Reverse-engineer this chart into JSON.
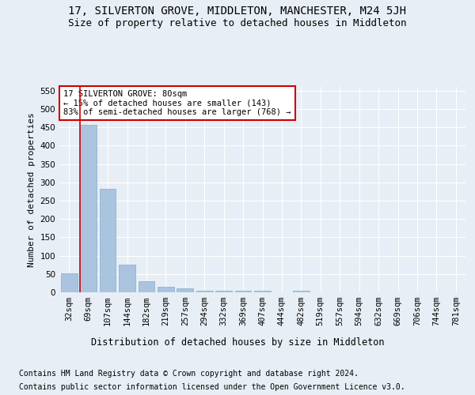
{
  "title": "17, SILVERTON GROVE, MIDDLETON, MANCHESTER, M24 5JH",
  "subtitle": "Size of property relative to detached houses in Middleton",
  "xlabel": "Distribution of detached houses by size in Middleton",
  "ylabel": "Number of detached properties",
  "categories": [
    "32sqm",
    "69sqm",
    "107sqm",
    "144sqm",
    "182sqm",
    "219sqm",
    "257sqm",
    "294sqm",
    "332sqm",
    "369sqm",
    "407sqm",
    "444sqm",
    "482sqm",
    "519sqm",
    "557sqm",
    "594sqm",
    "632sqm",
    "669sqm",
    "706sqm",
    "744sqm",
    "781sqm"
  ],
  "values": [
    52,
    457,
    283,
    76,
    31,
    15,
    10,
    5,
    4,
    4,
    5,
    0,
    5,
    0,
    0,
    0,
    0,
    0,
    0,
    0,
    0
  ],
  "bar_color": "#aac4e0",
  "bar_edge_color": "#7aafd0",
  "vline_x": 1,
  "vline_color": "#cc0000",
  "annotation_text": "17 SILVERTON GROVE: 80sqm\n← 15% of detached houses are smaller (143)\n83% of semi-detached houses are larger (768) →",
  "annotation_box_color": "#ffffff",
  "annotation_box_edge_color": "#cc0000",
  "ylim": [
    0,
    560
  ],
  "yticks": [
    0,
    50,
    100,
    150,
    200,
    250,
    300,
    350,
    400,
    450,
    500,
    550
  ],
  "background_color": "#e8eef5",
  "grid_color": "#ffffff",
  "footer1": "Contains HM Land Registry data © Crown copyright and database right 2024.",
  "footer2": "Contains public sector information licensed under the Open Government Licence v3.0.",
  "title_fontsize": 10,
  "subtitle_fontsize": 9,
  "annotation_fontsize": 7.5,
  "footer_fontsize": 7,
  "ylabel_fontsize": 8,
  "xlabel_fontsize": 8.5,
  "tick_fontsize": 7.5
}
